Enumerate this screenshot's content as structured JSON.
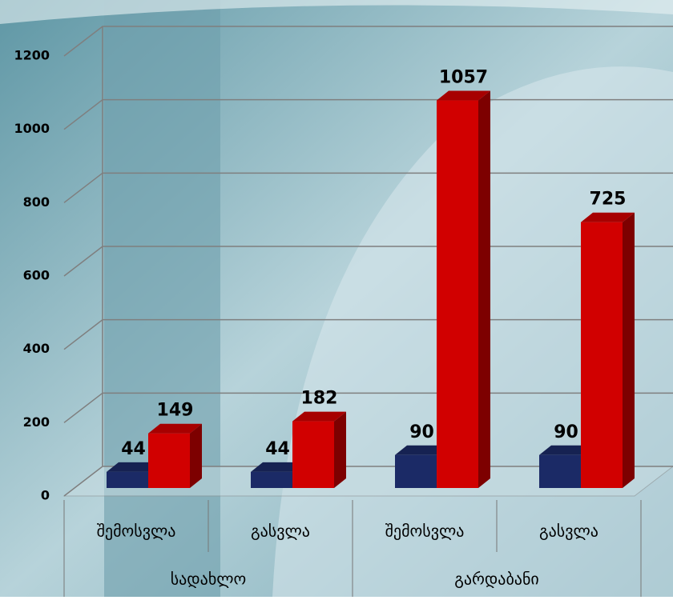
{
  "chart_data": {
    "type": "bar3d",
    "categories": [
      "შემოსვლა",
      "გასვლა",
      "შემოსვლა",
      "გასვლა"
    ],
    "groups": [
      "სადახლო",
      "გარდაბანი"
    ],
    "series": [
      {
        "color": "#1b2a66",
        "values": [
          44,
          44,
          90,
          90
        ]
      },
      {
        "color": "#d10000",
        "values": [
          149,
          182,
          1057,
          725
        ]
      }
    ],
    "ylim": [
      0,
      1200
    ],
    "yticks": [
      0,
      200,
      400,
      600,
      800,
      1000,
      1200
    ],
    "grid": true
  }
}
